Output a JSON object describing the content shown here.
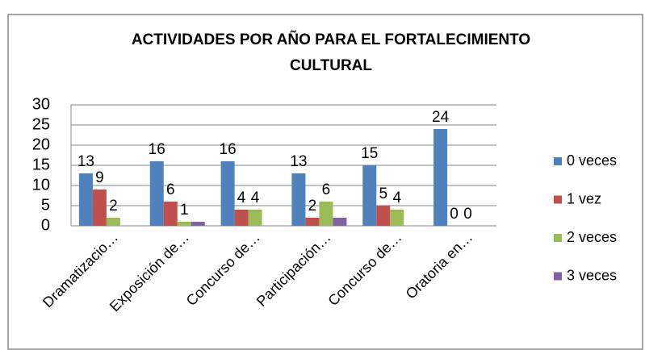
{
  "chart_data": {
    "type": "bar",
    "title": "ACTIVIDADES POR AÑO PARA EL FORTALECIMIENTO CULTURAL",
    "categories": [
      "Dramatizacio…",
      "Exposición de…",
      "Concurso de…",
      "Participación…",
      "Concurso de…",
      "Oratoria en…"
    ],
    "series": [
      {
        "name": "0 veces",
        "color": "#4f81bd",
        "values": [
          13,
          16,
          16,
          13,
          15,
          24
        ],
        "labels": true
      },
      {
        "name": "1 vez",
        "color": "#c0504d",
        "values": [
          9,
          6,
          4,
          2,
          5,
          0
        ],
        "labels": true
      },
      {
        "name": "2 veces",
        "color": "#9bbb59",
        "values": [
          2,
          1,
          4,
          6,
          4,
          0
        ],
        "labels": true
      },
      {
        "name": "3 veces",
        "color": "#8064a2",
        "values": [
          0,
          1,
          0,
          2,
          0,
          0
        ],
        "labels": false
      }
    ],
    "ylim": [
      0,
      30
    ],
    "yticks": [
      0,
      5,
      10,
      15,
      20,
      25,
      30
    ],
    "grid": true,
    "legend": "right"
  }
}
